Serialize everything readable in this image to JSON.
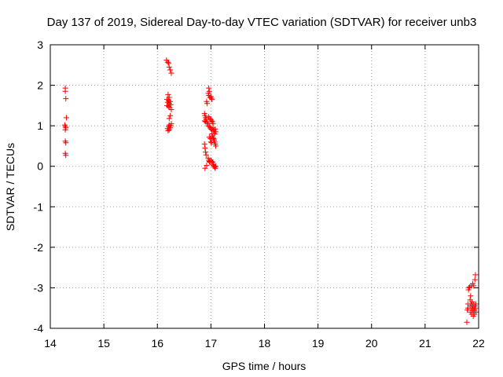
{
  "chart_data": {
    "type": "scatter",
    "title": "Day 137 of 2019, Sidereal Day-to-day VTEC variation (SDTVAR) for receiver unb3",
    "xlabel": "GPS time / hours",
    "ylabel": "SDTVAR / TECUs",
    "xlim": [
      14,
      22
    ],
    "ylim": [
      -4,
      3
    ],
    "xticks": [
      14,
      15,
      16,
      17,
      18,
      19,
      20,
      21,
      22
    ],
    "yticks": [
      -4,
      -3,
      -2,
      -1,
      0,
      1,
      2,
      3
    ],
    "grid": true,
    "marker": "+",
    "color": "#ff0000",
    "series": [
      {
        "name": "SDTVAR",
        "points": [
          [
            14.28,
            1.93
          ],
          [
            14.28,
            1.85
          ],
          [
            14.29,
            1.67
          ],
          [
            14.3,
            1.2
          ],
          [
            14.27,
            1.02
          ],
          [
            14.28,
            0.98
          ],
          [
            14.29,
            0.95
          ],
          [
            14.28,
            0.9
          ],
          [
            14.28,
            0.62
          ],
          [
            14.29,
            0.58
          ],
          [
            14.28,
            0.32
          ],
          [
            14.29,
            0.27
          ],
          [
            16.17,
            2.62
          ],
          [
            16.19,
            2.57
          ],
          [
            16.21,
            2.55
          ],
          [
            16.22,
            2.45
          ],
          [
            16.24,
            2.38
          ],
          [
            16.26,
            2.3
          ],
          [
            16.2,
            1.77
          ],
          [
            16.22,
            1.7
          ],
          [
            16.18,
            1.65
          ],
          [
            16.21,
            1.62
          ],
          [
            16.24,
            1.6
          ],
          [
            16.19,
            1.58
          ],
          [
            16.22,
            1.55
          ],
          [
            16.25,
            1.52
          ],
          [
            16.18,
            1.5
          ],
          [
            16.21,
            1.48
          ],
          [
            16.23,
            1.45
          ],
          [
            16.26,
            1.4
          ],
          [
            16.24,
            1.25
          ],
          [
            16.22,
            1.18
          ],
          [
            16.26,
            1.05
          ],
          [
            16.22,
            1.02
          ],
          [
            16.25,
            1.0
          ],
          [
            16.21,
            0.98
          ],
          [
            16.24,
            0.95
          ],
          [
            16.19,
            0.93
          ],
          [
            16.22,
            0.9
          ],
          [
            16.2,
            0.88
          ],
          [
            16.92,
            1.6
          ],
          [
            16.93,
            1.55
          ],
          [
            16.95,
            1.8
          ],
          [
            16.96,
            1.75
          ],
          [
            16.96,
            1.93
          ],
          [
            16.97,
            1.85
          ],
          [
            16.98,
            1.7
          ],
          [
            17.0,
            1.72
          ],
          [
            17.01,
            1.68
          ],
          [
            17.02,
            1.65
          ],
          [
            16.88,
            1.3
          ],
          [
            16.89,
            1.25
          ],
          [
            16.9,
            1.2
          ],
          [
            16.91,
            1.15
          ],
          [
            16.88,
            1.12
          ],
          [
            16.9,
            1.1
          ],
          [
            16.93,
            1.08
          ],
          [
            16.95,
            1.05
          ],
          [
            16.96,
            1.22
          ],
          [
            16.98,
            1.18
          ],
          [
            17.0,
            1.15
          ],
          [
            17.01,
            1.12
          ],
          [
            17.03,
            1.1
          ],
          [
            17.04,
            1.05
          ],
          [
            16.95,
            1.0
          ],
          [
            16.97,
            0.98
          ],
          [
            16.99,
            0.95
          ],
          [
            17.0,
            0.92
          ],
          [
            17.02,
            0.9
          ],
          [
            17.04,
            0.95
          ],
          [
            17.05,
            0.88
          ],
          [
            17.06,
            0.85
          ],
          [
            17.07,
            0.8
          ],
          [
            17.08,
            0.92
          ],
          [
            17.09,
            0.85
          ],
          [
            17.02,
            0.8
          ],
          [
            17.03,
            0.75
          ],
          [
            17.04,
            0.7
          ],
          [
            17.05,
            0.68
          ],
          [
            17.06,
            0.65
          ],
          [
            17.07,
            0.6
          ],
          [
            17.08,
            0.55
          ],
          [
            17.09,
            0.5
          ],
          [
            16.97,
            0.72
          ],
          [
            16.99,
            0.68
          ],
          [
            17.0,
            0.6
          ],
          [
            17.01,
            0.58
          ],
          [
            16.88,
            0.55
          ],
          [
            16.89,
            0.45
          ],
          [
            16.9,
            0.35
          ],
          [
            16.91,
            0.28
          ],
          [
            16.89,
            -0.05
          ],
          [
            16.92,
            0.02
          ],
          [
            16.95,
            0.2
          ],
          [
            16.96,
            0.15
          ],
          [
            16.97,
            0.12
          ],
          [
            16.98,
            0.1
          ],
          [
            17.0,
            0.15
          ],
          [
            17.01,
            0.12
          ],
          [
            17.03,
            0.1
          ],
          [
            17.04,
            0.05
          ],
          [
            17.05,
            0.02
          ],
          [
            17.06,
            0.0
          ],
          [
            17.07,
            -0.02
          ],
          [
            17.08,
            -0.05
          ],
          [
            17.09,
            0.0
          ],
          [
            21.78,
            -3.85
          ],
          [
            21.79,
            -3.55
          ],
          [
            21.8,
            -3.5
          ],
          [
            21.8,
            -3.4
          ],
          [
            21.81,
            -3.05
          ],
          [
            21.82,
            -3.0
          ],
          [
            21.83,
            -2.98
          ],
          [
            21.84,
            -3.3
          ],
          [
            21.84,
            -3.45
          ],
          [
            21.85,
            -3.6
          ],
          [
            21.85,
            -3.2
          ],
          [
            21.86,
            -2.95
          ],
          [
            21.86,
            -3.4
          ],
          [
            21.87,
            -3.5
          ],
          [
            21.87,
            -3.65
          ],
          [
            21.88,
            -3.55
          ],
          [
            21.88,
            -3.35
          ],
          [
            21.89,
            -2.9
          ],
          [
            21.89,
            -3.45
          ],
          [
            21.9,
            -3.6
          ],
          [
            21.9,
            -3.7
          ],
          [
            21.91,
            -3.5
          ],
          [
            21.91,
            -3.4
          ],
          [
            21.91,
            -2.95
          ],
          [
            21.92,
            -3.55
          ],
          [
            21.92,
            -3.65
          ],
          [
            21.93,
            -3.45
          ],
          [
            21.93,
            -2.8
          ],
          [
            21.94,
            -2.68
          ],
          [
            21.94,
            -3.5
          ],
          [
            21.95,
            -3.6
          ],
          [
            21.95,
            -3.4
          ]
        ]
      }
    ]
  }
}
